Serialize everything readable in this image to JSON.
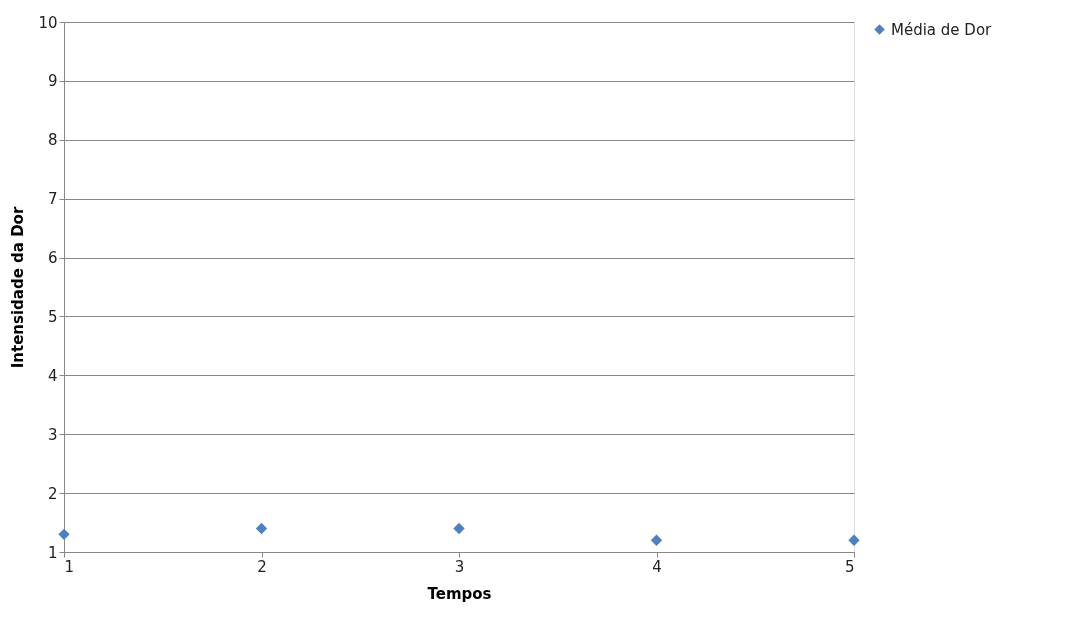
{
  "chart_data": {
    "type": "scatter",
    "xlabel": "Tempos",
    "ylabel": "Intensidade da Dor",
    "x": [
      1,
      2,
      3,
      4,
      5
    ],
    "series": [
      {
        "name": "Média de Dor",
        "color": "#4f81bd",
        "values": [
          1.3,
          1.4,
          1.4,
          1.2,
          1.2
        ]
      }
    ],
    "xlim": [
      1,
      5
    ],
    "xticks": [
      1,
      2,
      3,
      4,
      5
    ],
    "ylim": [
      1,
      10
    ],
    "yticks": [
      1,
      2,
      3,
      4,
      5,
      6,
      7,
      8,
      9,
      10
    ],
    "grid": "y",
    "legend": "right",
    "marker": "diamond"
  }
}
